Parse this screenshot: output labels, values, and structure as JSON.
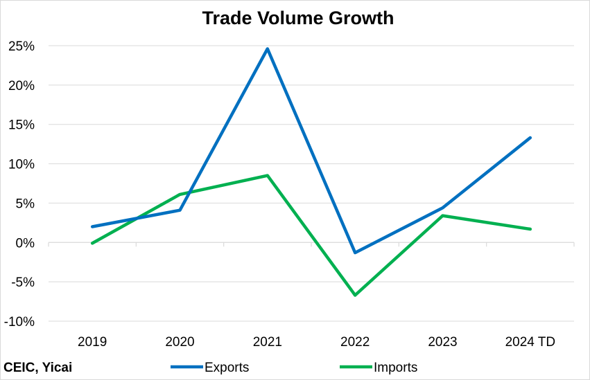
{
  "chart_data": {
    "type": "line",
    "title": "Trade Volume Growth",
    "categories": [
      "2019",
      "2020",
      "2021",
      "2022",
      "2023",
      "2024 TD"
    ],
    "series": [
      {
        "name": "Exports",
        "color": "#0070c0",
        "values": [
          2.0,
          4.1,
          24.6,
          -1.3,
          4.4,
          13.3
        ]
      },
      {
        "name": "Imports",
        "color": "#00b050",
        "values": [
          -0.1,
          6.1,
          8.5,
          -6.7,
          3.4,
          1.7
        ]
      }
    ],
    "ylim": [
      -10,
      25
    ],
    "yticks": [
      25,
      20,
      15,
      10,
      5,
      0,
      -5,
      -10
    ],
    "ytick_labels": [
      "25%",
      "20%",
      "15%",
      "10%",
      "5%",
      "0%",
      "-5%",
      "-10%"
    ],
    "grid": true,
    "legend_position": "bottom",
    "source": "CEIC, Yicai"
  }
}
